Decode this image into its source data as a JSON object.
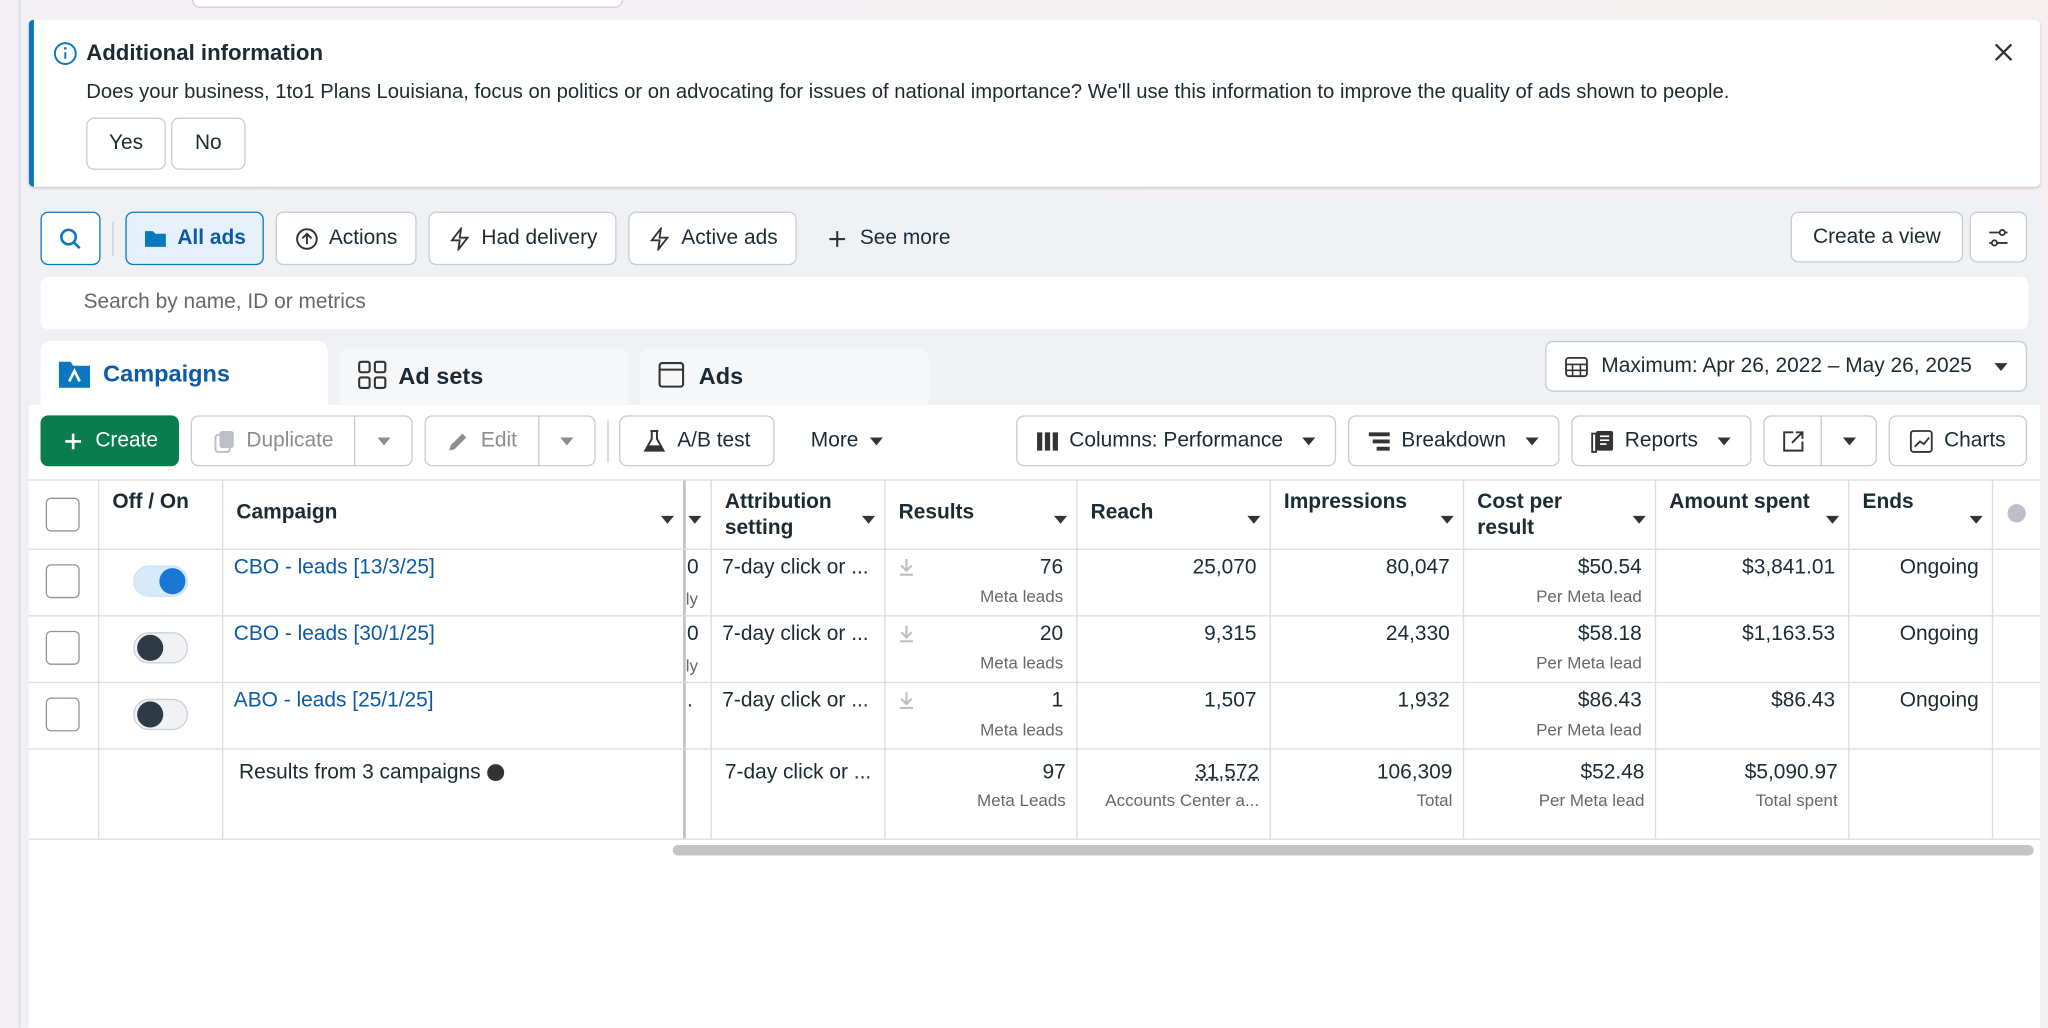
{
  "banner": {
    "title": "Additional information",
    "message": "Does your business, 1to1 Plans Louisiana, focus on politics or on advocating for issues of national importance? We'll use this information to improve the quality of ads shown to people.",
    "buttons": [
      "Yes",
      "No"
    ]
  },
  "filters": [
    "All ads",
    "Actions",
    "Had delivery",
    "Active ads",
    "See more"
  ],
  "create_view": "Create a view",
  "search_placeholder": "Search by name, ID or metrics",
  "tabs": [
    "Campaigns",
    "Ad sets",
    "Ads"
  ],
  "date_range": "Maximum: Apr 26, 2022 – May 26, 2025",
  "toolbar": [
    "Create",
    "Duplicate",
    "Edit",
    "A/B test",
    "More",
    "Columns: Performance",
    "Breakdown",
    "Reports",
    "Charts"
  ],
  "table": {
    "headers": [
      "Off / On",
      "Campaign",
      "Attribution setting",
      "Results",
      "Reach",
      "Impressions",
      "Cost per result",
      "Amount spent",
      "Ends"
    ],
    "rows": [
      {
        "name": "CBO - leads [13/3/25]",
        "on": true,
        "clipped": "0",
        "clipped_sub": "ly",
        "attribution": "7-day click or ...",
        "results": "76",
        "results_sub": "Meta leads",
        "reach": "25,070",
        "impressions": "80,047",
        "cost": "$50.54",
        "cost_sub": "Per Meta lead",
        "spent": "$3,841.01",
        "ends": "Ongoing"
      },
      {
        "name": "CBO - leads [30/1/25]",
        "on": false,
        "clipped": "0",
        "clipped_sub": "ly",
        "attribution": "7-day click or ...",
        "results": "20",
        "results_sub": "Meta leads",
        "reach": "9,315",
        "impressions": "24,330",
        "cost": "$58.18",
        "cost_sub": "Per Meta lead",
        "spent": "$1,163.53",
        "ends": "Ongoing"
      },
      {
        "name": "ABO - leads [25/1/25]",
        "on": false,
        "clipped": ".",
        "attribution": "7-day click or ...",
        "results": "1",
        "results_sub": "Meta leads",
        "reach": "1,507",
        "impressions": "1,932",
        "cost": "$86.43",
        "cost_sub": "Per Meta lead",
        "spent": "$86.43",
        "ends": "Ongoing"
      }
    ],
    "totals": {
      "label": "Results from 3 campaigns",
      "attribution": "7-day click or ...",
      "results": "97",
      "results_sub": "Meta Leads",
      "reach": "31,572",
      "reach_sub": "Accounts Center a...",
      "impressions": "106,309",
      "impressions_sub": "Total",
      "cost": "$52.48",
      "cost_sub": "Per Meta lead",
      "spent": "$5,090.97",
      "spent_sub": "Total spent"
    }
  }
}
